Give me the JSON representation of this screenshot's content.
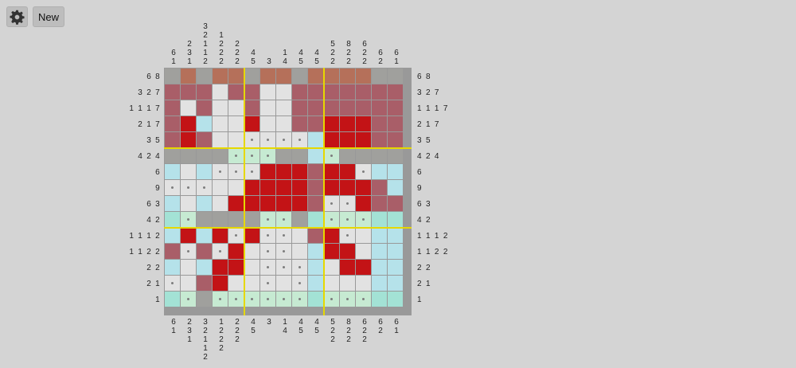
{
  "toolbar": {
    "settings_icon": "gear-icon",
    "new_label": "New"
  },
  "puzzle": {
    "size": 15,
    "col_clues": [
      [
        "6",
        "1"
      ],
      [
        "2",
        "3",
        "1"
      ],
      [
        "3",
        "2",
        "1",
        "1",
        "2"
      ],
      [
        "1",
        "2",
        "2",
        "2"
      ],
      [
        "2",
        "2",
        "2"
      ],
      [
        "4",
        "5"
      ],
      [
        "3"
      ],
      [
        "1",
        "4"
      ],
      [
        "4",
        "5"
      ],
      [
        "4",
        "5"
      ],
      [
        "5",
        "2",
        "2"
      ],
      [
        "8",
        "2",
        "2"
      ],
      [
        "6",
        "2",
        "2"
      ],
      [
        "6",
        "2"
      ],
      [
        "6",
        "1"
      ]
    ],
    "row_clues": [
      "6 8",
      "3 2 7",
      "1 1 1 7",
      "2 1 7",
      "3 5",
      "4 2 4",
      "6",
      "9",
      "6 3",
      "4 2",
      "1 1 1 2",
      "1 1 2 2",
      "2 2",
      "2 1",
      "1"
    ],
    "grid": [
      "gbgbbgbbgbbbbgg",
      "rrrwrrwwrrrrrrr",
      "rwrwwrwwrrrrrrr",
      "rRcwwRwwrrRRRrr",
      "rRrwwddddcRRRrr",
      "ggggLLLggcLgggg",
      "cwcdddRRRrRRdcc",
      "dddwwRRRRrRRRrc",
      "cwcwRRRRRrddRrr",
      "cLggggLLgcLLLcc",
      "cRcRdRddwrRdwcc",
      "rdrdRwddwcRRwcc",
      "cwcRRwdddcwRRcc",
      "dwrRwwdwdcwwwcc",
      "cLgLLLLLLcLLLcc"
    ],
    "colors": {
      "filled": "#c31316",
      "crossed_line": "#a95e68",
      "crossed_line_brown": "#b5705a",
      "crossed_line_gray": "#a0a09d",
      "empty": "#e2e2e2",
      "done_line_blue": "#b5e2ea",
      "done_line_green": "#c6ead2",
      "done_line_cross": "#a3e2d5",
      "block_divider": "#e6d800"
    }
  }
}
